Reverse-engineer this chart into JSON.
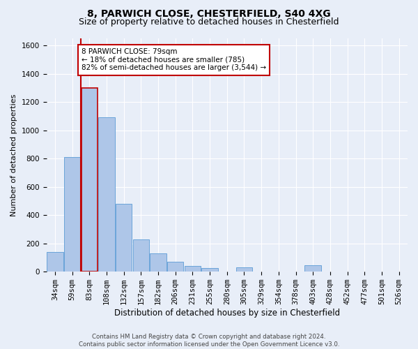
{
  "title1": "8, PARWICH CLOSE, CHESTERFIELD, S40 4XG",
  "title2": "Size of property relative to detached houses in Chesterfield",
  "xlabel": "Distribution of detached houses by size in Chesterfield",
  "ylabel": "Number of detached properties",
  "footnote": "Contains HM Land Registry data © Crown copyright and database right 2024.\nContains public sector information licensed under the Open Government Licence v3.0.",
  "bar_labels": [
    "34sqm",
    "59sqm",
    "83sqm",
    "108sqm",
    "132sqm",
    "157sqm",
    "182sqm",
    "206sqm",
    "231sqm",
    "255sqm",
    "280sqm",
    "305sqm",
    "329sqm",
    "354sqm",
    "378sqm",
    "403sqm",
    "428sqm",
    "452sqm",
    "477sqm",
    "501sqm",
    "526sqm"
  ],
  "bar_values": [
    140,
    810,
    1300,
    1090,
    480,
    230,
    130,
    70,
    40,
    25,
    0,
    30,
    0,
    0,
    0,
    45,
    0,
    0,
    0,
    0,
    0
  ],
  "bar_color": "#aec6e8",
  "bar_edge_color": "#5b9bd5",
  "highlight_bar_index": 2,
  "highlight_bar_edge_color": "#c00000",
  "annotation_text": "8 PARWICH CLOSE: 79sqm\n← 18% of detached houses are smaller (785)\n82% of semi-detached houses are larger (3,544) →",
  "annotation_box_color": "#ffffff",
  "annotation_box_edge_color": "#c00000",
  "vline_x_index": 1,
  "ylim": [
    0,
    1650
  ],
  "bg_color": "#e8eef8",
  "plot_bg_color": "#e8eef8",
  "grid_color": "#ffffff",
  "title1_fontsize": 10,
  "title2_fontsize": 9,
  "xlabel_fontsize": 8.5,
  "ylabel_fontsize": 8,
  "tick_fontsize": 7.5,
  "annot_fontsize": 7.5
}
